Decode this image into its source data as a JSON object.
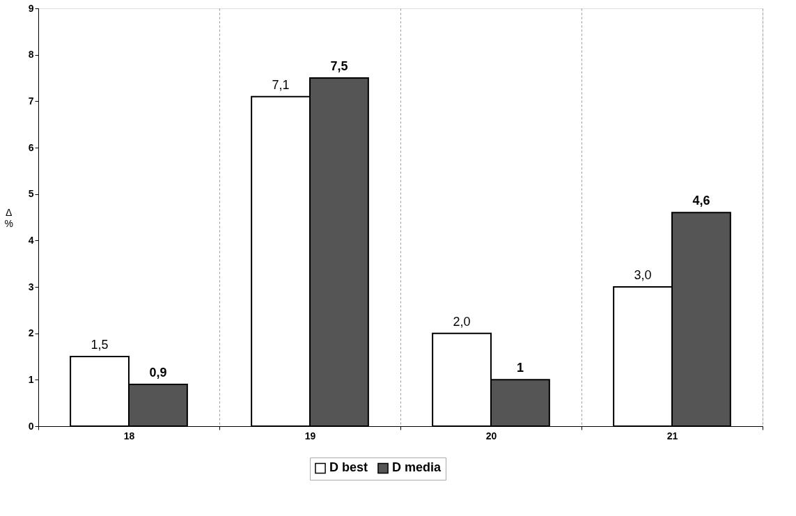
{
  "chart_data": {
    "type": "bar",
    "ylabel": "Δ %",
    "categories": [
      "18",
      "19",
      "20",
      "21"
    ],
    "series": [
      {
        "name": "D best",
        "color": "#ffffff",
        "values": [
          1.5,
          7.1,
          2.0,
          3.0
        ],
        "value_labels": [
          "1,5",
          "7,1",
          "2,0",
          "3,0"
        ]
      },
      {
        "name": "D media",
        "color": "#555555",
        "values": [
          0.9,
          7.5,
          1,
          4.6
        ],
        "value_labels": [
          "0,9",
          "7,5",
          "1",
          "4,6"
        ]
      }
    ],
    "ylim": [
      0,
      9
    ],
    "yticks": [
      0,
      1,
      2,
      3,
      4,
      5,
      6,
      7,
      8,
      9
    ],
    "grid": "x",
    "legend": "bottom"
  }
}
